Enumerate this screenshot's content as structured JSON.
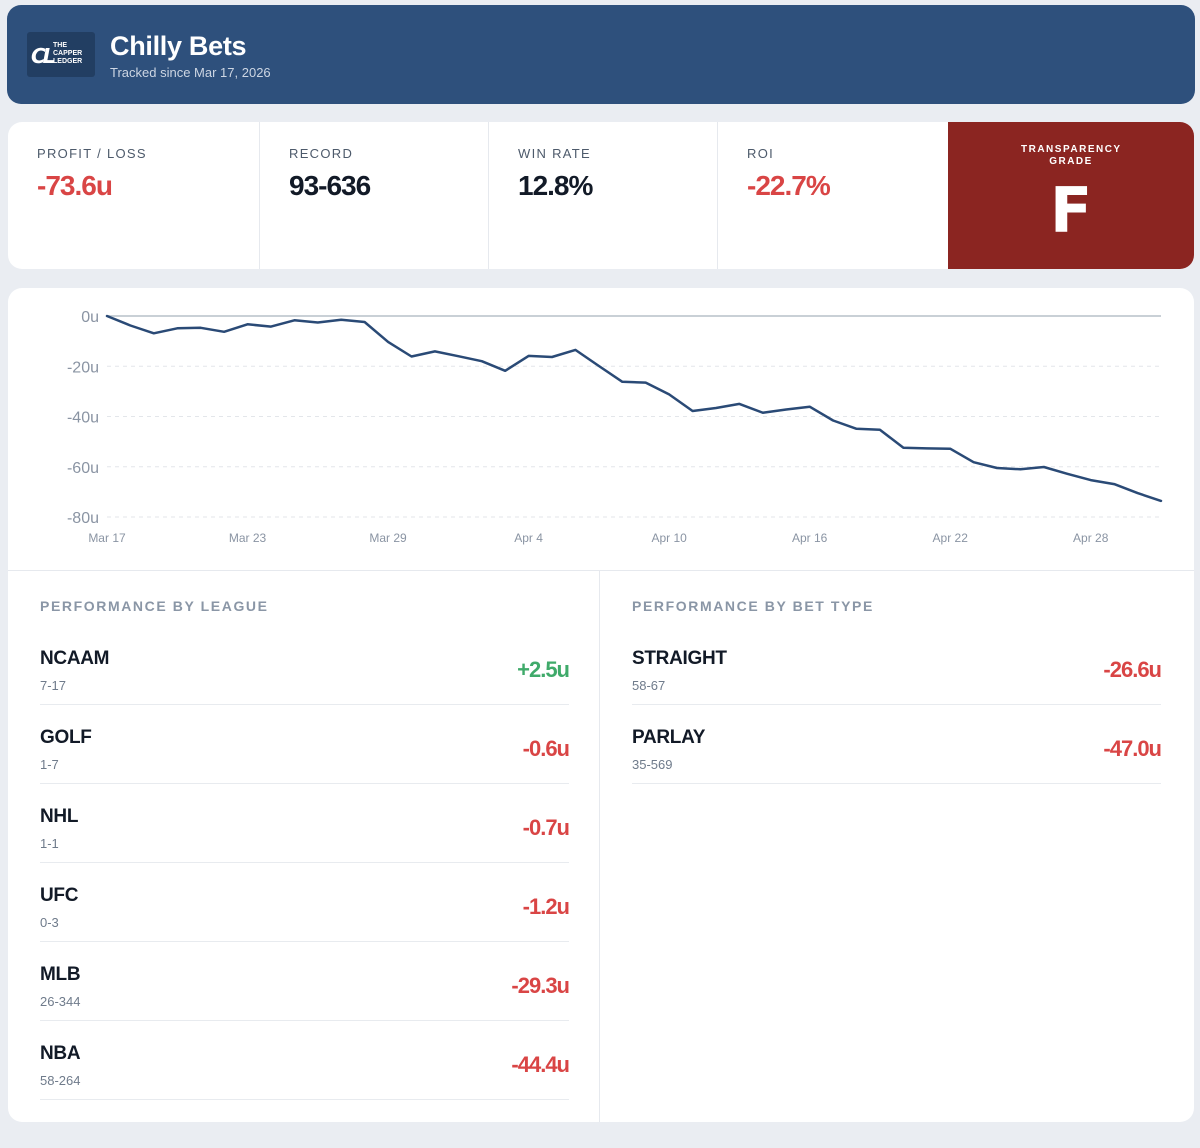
{
  "header": {
    "logo_text": "THE CAPPER LEDGER",
    "name": "Chilly Bets",
    "tracked_since": "Tracked since Mar 17, 2026"
  },
  "stats": [
    {
      "label": "PROFIT / LOSS",
      "value": "-73.6u",
      "negative": true
    },
    {
      "label": "RECORD",
      "value": "93-636",
      "negative": false
    },
    {
      "label": "WIN RATE",
      "value": "12.8%",
      "negative": false
    },
    {
      "label": "ROI",
      "value": "-22.7%",
      "negative": true
    }
  ],
  "grade": {
    "label": "TRANSPARENCY GRADE",
    "value": "F",
    "color": "#8b2521"
  },
  "colors": {
    "header": "#2e507c",
    "positive": "#3faa6a",
    "negative": "#d94545",
    "line": "#2a4a76"
  },
  "chart_data": {
    "type": "line",
    "title": "",
    "xlabel": "",
    "ylabel": "",
    "ylim": [
      -80,
      0
    ],
    "y_ticks": [
      "0u",
      "-20u",
      "-40u",
      "-60u",
      "-80u"
    ],
    "x_ticks": [
      "Mar 17",
      "Mar 23",
      "Mar 29",
      "Apr 4",
      "Apr 10",
      "Apr 16",
      "Apr 22",
      "Apr 28"
    ],
    "grid": true,
    "series": [
      {
        "values": [
          0,
          -3.8,
          -6.9,
          -4.9,
          -4.7,
          -6.3,
          -3.3,
          -4.2,
          -1.7,
          -2.6,
          -1.5,
          -2.4,
          -10.3,
          -16.1,
          -14.1,
          -16.0,
          -18.0,
          -21.8,
          -15.9,
          -16.3,
          -13.5,
          -19.9,
          -26.2,
          -26.5,
          -31.2,
          -37.8,
          -36.6,
          -35.0,
          -38.5,
          -37.2,
          -36.1,
          -41.6,
          -44.9,
          -45.3,
          -52.4,
          -52.7,
          -52.8,
          -58.2,
          -60.5,
          -61.0,
          -60.1,
          -62.8,
          -65.3,
          -66.9,
          -70.5,
          -73.6
        ]
      }
    ]
  },
  "performance_by_league": {
    "title": "PERFORMANCE BY LEAGUE",
    "rows": [
      {
        "name": "NCAAM",
        "record": "7-17",
        "value": "+2.5u",
        "positive": true
      },
      {
        "name": "GOLF",
        "record": "1-7",
        "value": "-0.6u",
        "positive": false
      },
      {
        "name": "NHL",
        "record": "1-1",
        "value": "-0.7u",
        "positive": false
      },
      {
        "name": "UFC",
        "record": "0-3",
        "value": "-1.2u",
        "positive": false
      },
      {
        "name": "MLB",
        "record": "26-344",
        "value": "-29.3u",
        "positive": false
      },
      {
        "name": "NBA",
        "record": "58-264",
        "value": "-44.4u",
        "positive": false
      }
    ]
  },
  "performance_by_bet_type": {
    "title": "PERFORMANCE BY BET TYPE",
    "rows": [
      {
        "name": "STRAIGHT",
        "record": "58-67",
        "value": "-26.6u",
        "positive": false
      },
      {
        "name": "PARLAY",
        "record": "35-569",
        "value": "-47.0u",
        "positive": false
      }
    ]
  }
}
